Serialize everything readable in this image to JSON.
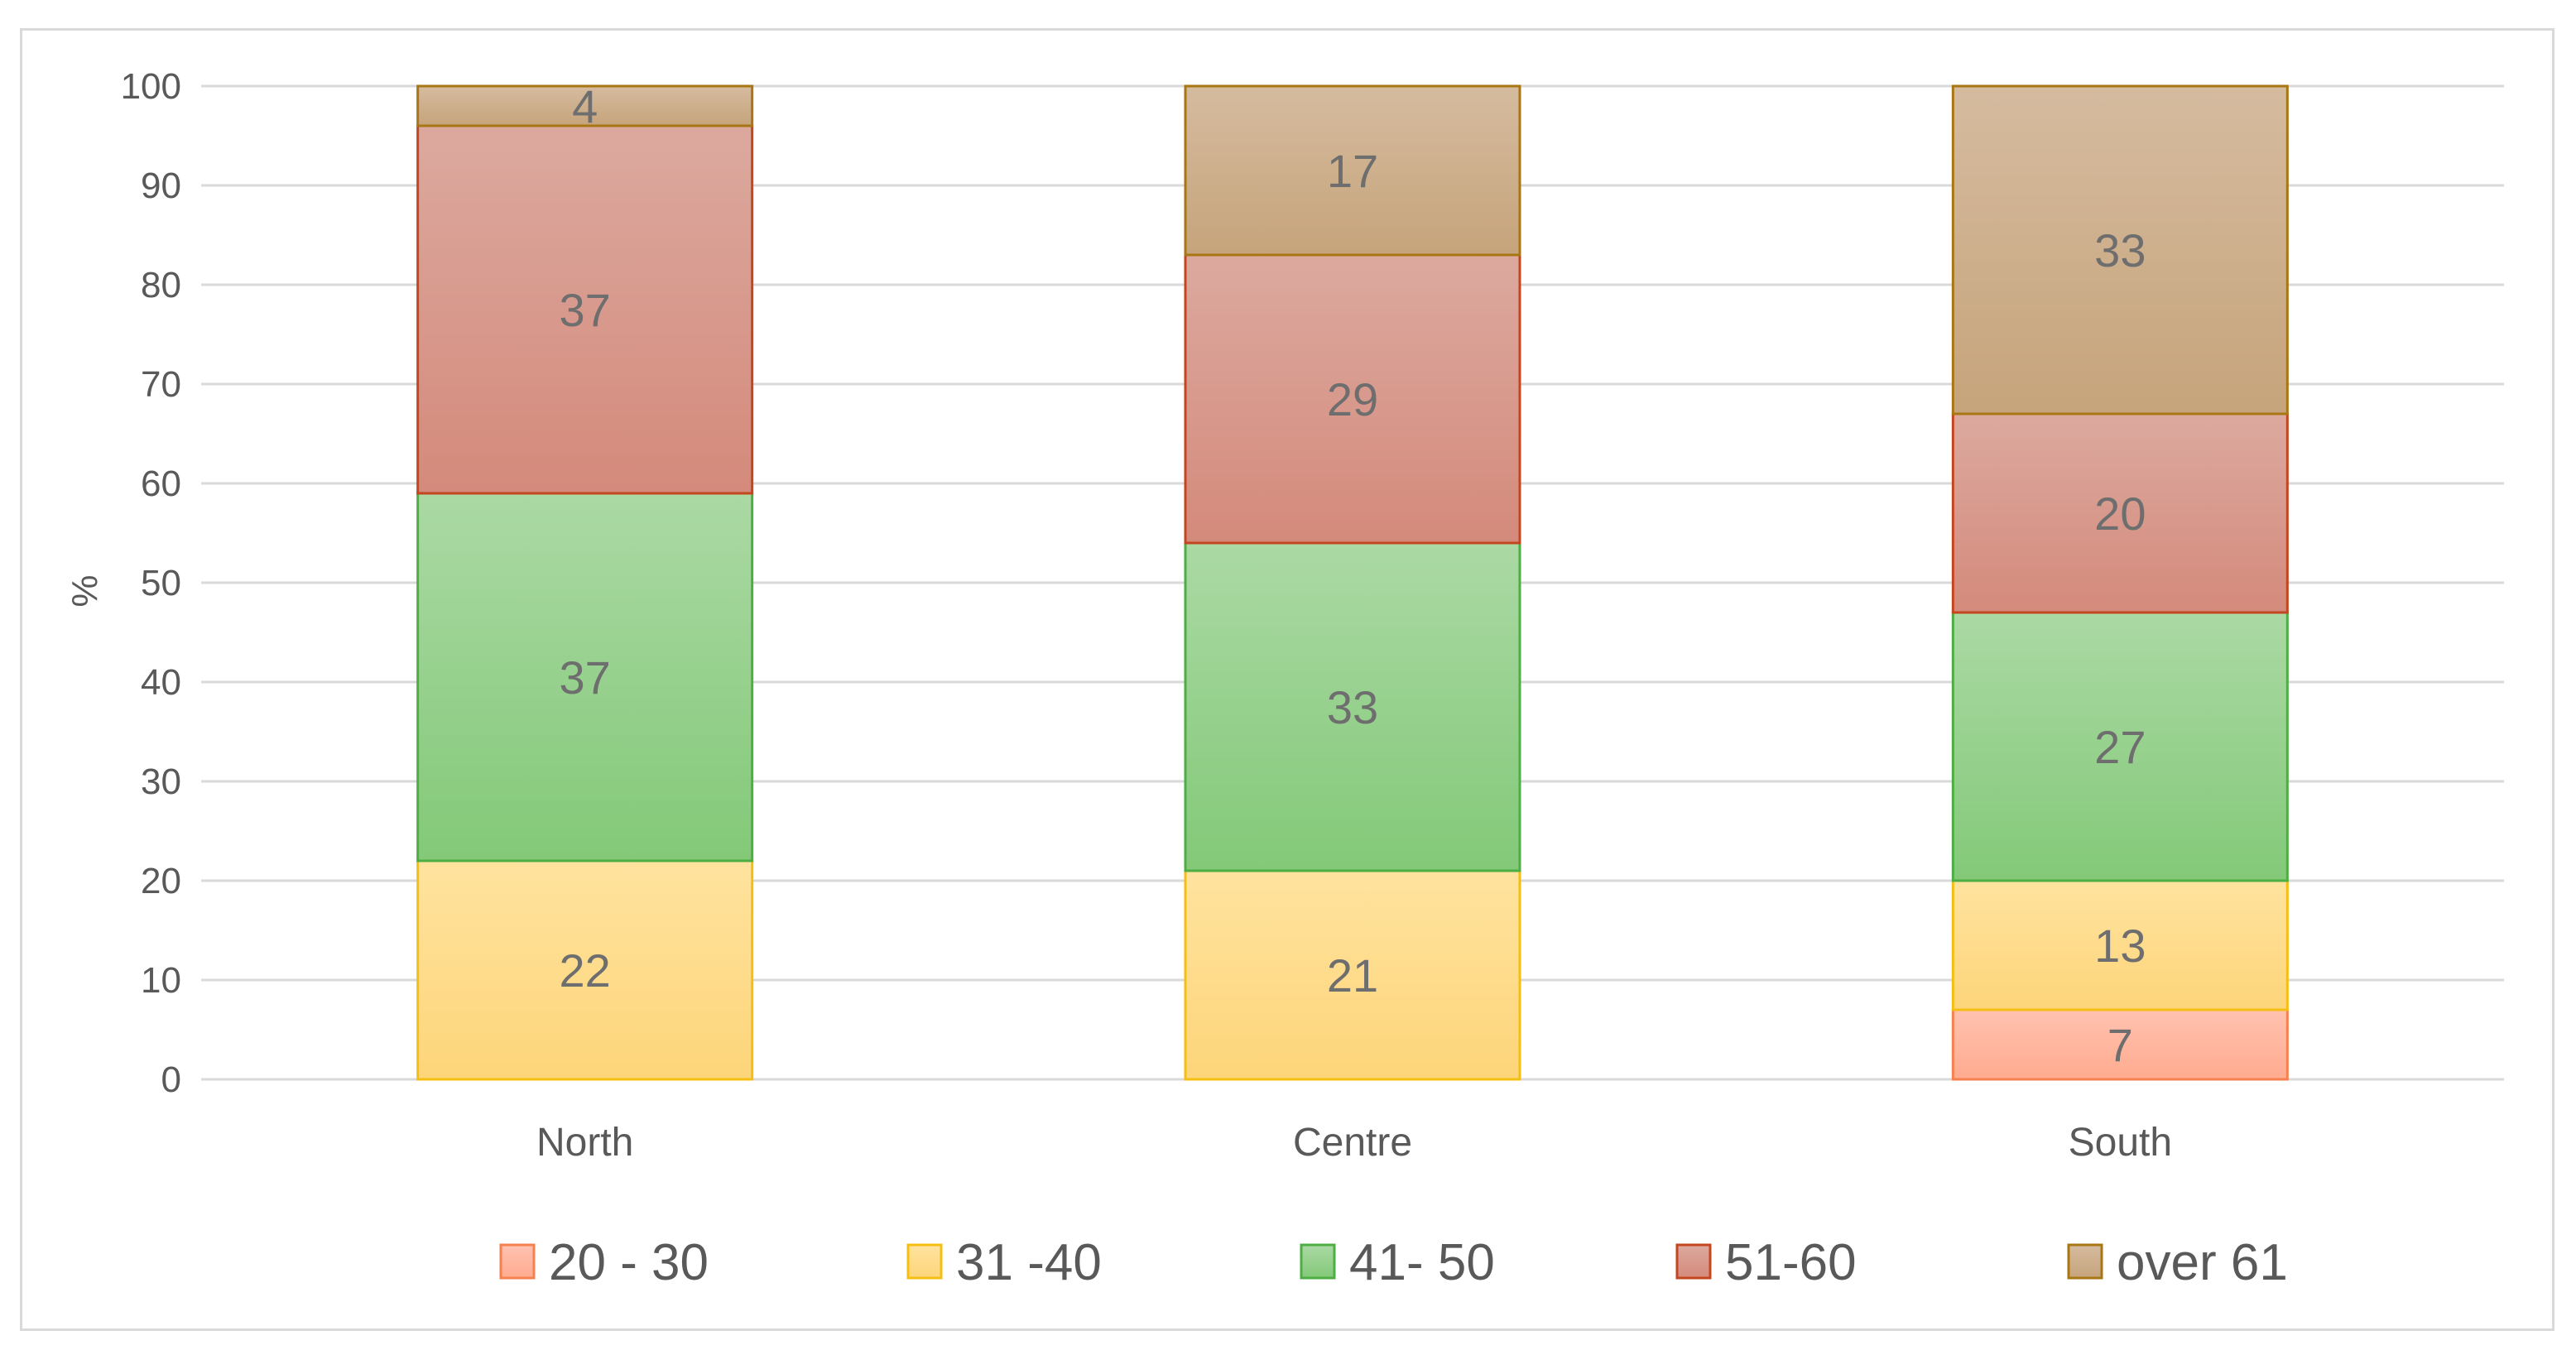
{
  "chart_data": {
    "type": "bar",
    "stacked": true,
    "title": "",
    "xlabel": "",
    "ylabel": "%",
    "ylim": [
      0,
      100
    ],
    "yticks": [
      0,
      10,
      20,
      30,
      40,
      50,
      60,
      70,
      80,
      90,
      100
    ],
    "grid": true,
    "legend_position": "bottom",
    "categories": [
      "North",
      "Centre",
      "South"
    ],
    "series": [
      {
        "name": "20 - 30",
        "values": [
          0,
          0,
          7
        ],
        "fill_top": "#ffc2b0",
        "fill_bottom": "#ffab8f",
        "border": "#f4814f"
      },
      {
        "name": "31 -40",
        "values": [
          22,
          21,
          13
        ],
        "fill_top": "#ffe39e",
        "fill_bottom": "#fdd57a",
        "border": "#f4bf12"
      },
      {
        "name": "41- 50",
        "values": [
          37,
          33,
          27
        ],
        "fill_top": "#abd9a4",
        "fill_bottom": "#83c978",
        "border": "#4eae43"
      },
      {
        "name": "51-60",
        "values": [
          37,
          29,
          20
        ],
        "fill_top": "#dca99f",
        "fill_bottom": "#d48a7b",
        "border": "#c4461f"
      },
      {
        "name": "over 61",
        "values": [
          4,
          17,
          33
        ],
        "fill_top": "#d5bb9f",
        "fill_bottom": "#c6a47b",
        "border": "#a87613"
      }
    ]
  }
}
